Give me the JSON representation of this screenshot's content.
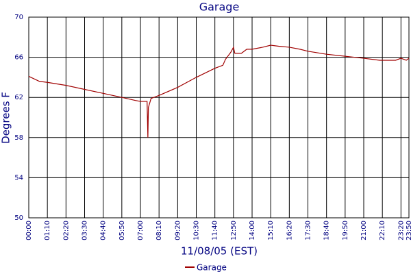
{
  "chart_data": {
    "type": "line",
    "title": "Garage",
    "xlabel": "11/08/05 (EST)",
    "ylabel": "Degrees F",
    "x": [
      0,
      40,
      70,
      140,
      210,
      280,
      350,
      400,
      420,
      445,
      448,
      450,
      460,
      490,
      560,
      630,
      700,
      730,
      740,
      760,
      770,
      775,
      800,
      820,
      840,
      880,
      910,
      940,
      980,
      1020,
      1050,
      1120,
      1190,
      1260,
      1320,
      1380,
      1400,
      1420,
      1430
    ],
    "series": [
      {
        "name": "Garage",
        "color": "#a00000",
        "values": [
          64.1,
          63.6,
          63.5,
          63.2,
          62.8,
          62.4,
          62.0,
          61.7,
          61.6,
          61.6,
          58.0,
          61.0,
          61.9,
          62.2,
          63.0,
          64.0,
          64.9,
          65.2,
          65.8,
          66.5,
          67.0,
          66.4,
          66.4,
          66.8,
          66.8,
          67.0,
          67.2,
          67.1,
          67.0,
          66.8,
          66.6,
          66.3,
          66.1,
          65.9,
          65.7,
          65.7,
          65.9,
          65.7,
          65.9
        ]
      }
    ],
    "xlim": [
      0,
      1430
    ],
    "xticks": [
      {
        "value": 0,
        "label": "00:00"
      },
      {
        "value": 70,
        "label": "01:10"
      },
      {
        "value": 140,
        "label": "02:20"
      },
      {
        "value": 210,
        "label": "03:30"
      },
      {
        "value": 280,
        "label": "04:40"
      },
      {
        "value": 350,
        "label": "05:50"
      },
      {
        "value": 420,
        "label": "07:00"
      },
      {
        "value": 490,
        "label": "08:10"
      },
      {
        "value": 560,
        "label": "09:20"
      },
      {
        "value": 630,
        "label": "10:30"
      },
      {
        "value": 700,
        "label": "11:40"
      },
      {
        "value": 770,
        "label": "12:50"
      },
      {
        "value": 840,
        "label": "14:00"
      },
      {
        "value": 910,
        "label": "15:10"
      },
      {
        "value": 980,
        "label": "16:20"
      },
      {
        "value": 1050,
        "label": "17:30"
      },
      {
        "value": 1120,
        "label": "18:40"
      },
      {
        "value": 1190,
        "label": "19:50"
      },
      {
        "value": 1260,
        "label": "21:00"
      },
      {
        "value": 1330,
        "label": "22:10"
      },
      {
        "value": 1400,
        "label": "23:20"
      },
      {
        "value": 1430,
        "label": "23:50"
      }
    ],
    "ylim": [
      50,
      70
    ],
    "yticks": [
      50,
      54,
      58,
      62,
      66,
      70
    ],
    "grid": true
  }
}
